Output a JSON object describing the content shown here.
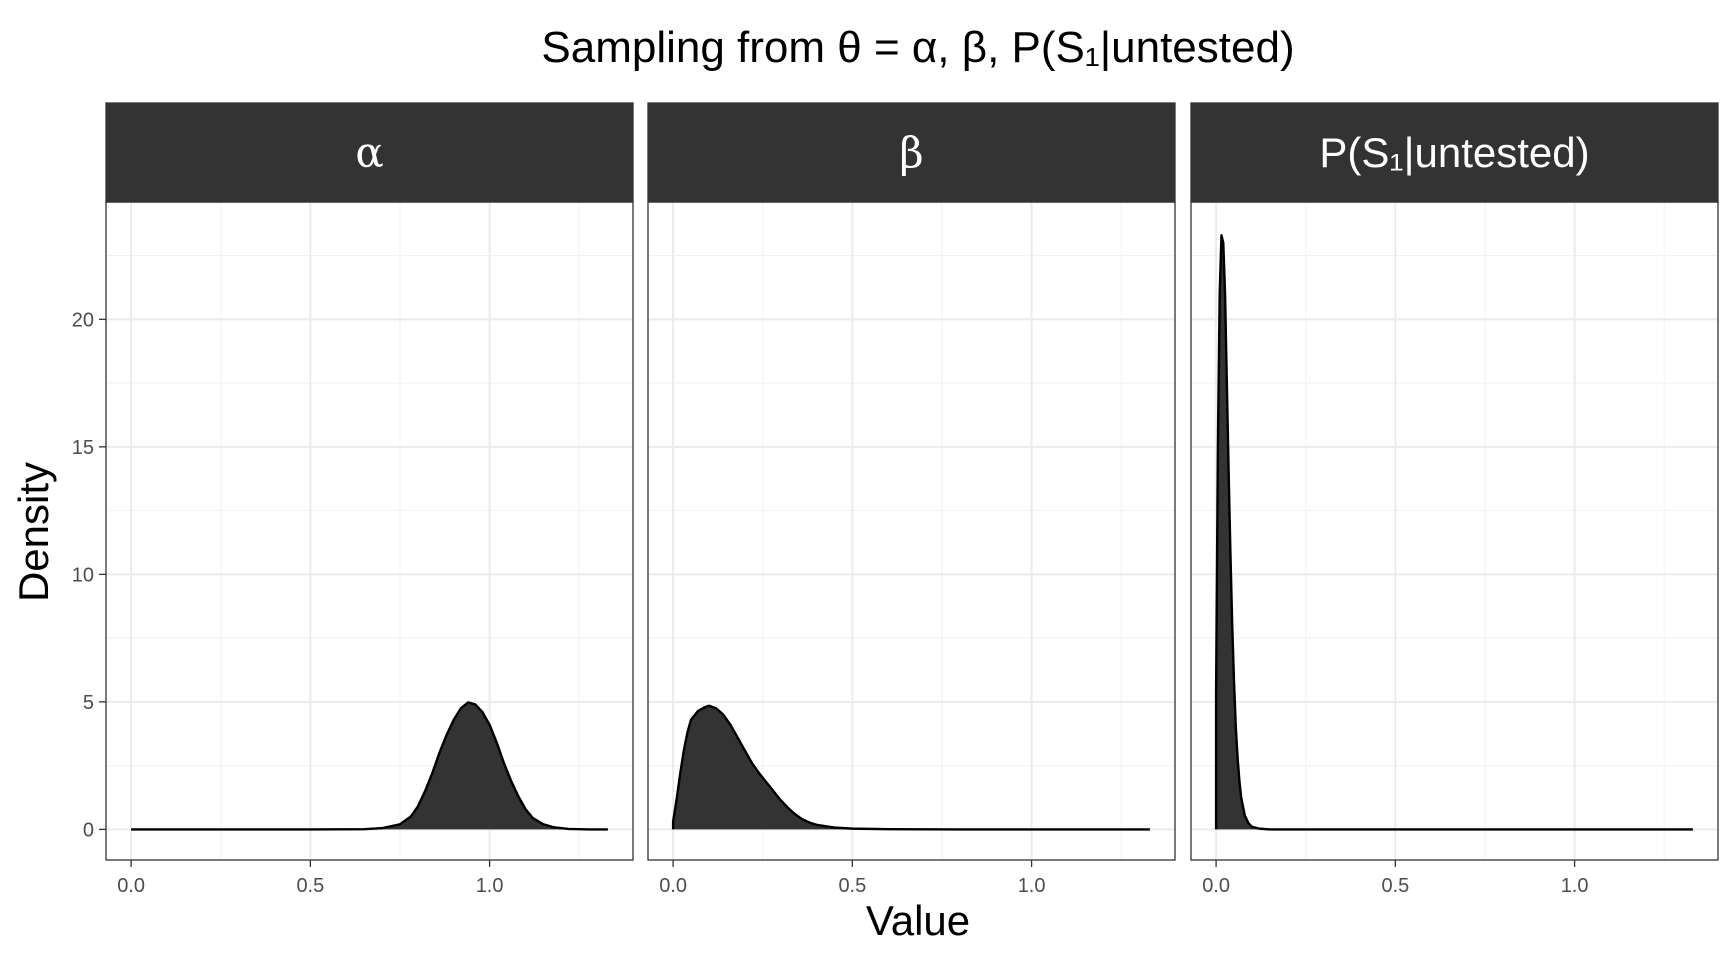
{
  "chart_data": {
    "type": "area",
    "title": "Sampling from θ = α, β, P(S₁|untested)",
    "xlabel": "Value",
    "ylabel": "Density",
    "xlim": [
      -0.07,
      1.4
    ],
    "ylim": [
      -1.2,
      24.6
    ],
    "x_ticks": [
      0.0,
      0.5,
      1.0
    ],
    "x_tick_labels": [
      "0.0",
      "0.5",
      "1.0"
    ],
    "y_ticks": [
      0,
      5,
      10,
      15,
      20
    ],
    "y_tick_labels": [
      "0",
      "5",
      "10",
      "15",
      "20"
    ],
    "grid": true,
    "legend": "none",
    "panels": [
      {
        "strip_label": "α",
        "points": [
          [
            0.0,
            0
          ],
          [
            0.5,
            0
          ],
          [
            0.65,
            0.01
          ],
          [
            0.7,
            0.05
          ],
          [
            0.75,
            0.2
          ],
          [
            0.78,
            0.5
          ],
          [
            0.8,
            0.9
          ],
          [
            0.82,
            1.5
          ],
          [
            0.84,
            2.2
          ],
          [
            0.86,
            3.0
          ],
          [
            0.88,
            3.7
          ],
          [
            0.9,
            4.3
          ],
          [
            0.92,
            4.75
          ],
          [
            0.94,
            4.98
          ],
          [
            0.96,
            4.9
          ],
          [
            0.98,
            4.6
          ],
          [
            1.0,
            4.1
          ],
          [
            1.02,
            3.4
          ],
          [
            1.04,
            2.6
          ],
          [
            1.06,
            1.9
          ],
          [
            1.08,
            1.3
          ],
          [
            1.1,
            0.8
          ],
          [
            1.12,
            0.45
          ],
          [
            1.15,
            0.2
          ],
          [
            1.18,
            0.08
          ],
          [
            1.22,
            0.02
          ],
          [
            1.28,
            0.0
          ],
          [
            1.33,
            0.0
          ]
        ]
      },
      {
        "strip_label": "β",
        "points": [
          [
            0.0,
            0.3
          ],
          [
            0.01,
            1.2
          ],
          [
            0.02,
            2.2
          ],
          [
            0.03,
            3.1
          ],
          [
            0.04,
            3.8
          ],
          [
            0.05,
            4.3
          ],
          [
            0.07,
            4.65
          ],
          [
            0.09,
            4.8
          ],
          [
            0.1,
            4.85
          ],
          [
            0.12,
            4.75
          ],
          [
            0.14,
            4.5
          ],
          [
            0.16,
            4.1
          ],
          [
            0.18,
            3.6
          ],
          [
            0.2,
            3.1
          ],
          [
            0.22,
            2.6
          ],
          [
            0.24,
            2.2
          ],
          [
            0.26,
            1.85
          ],
          [
            0.28,
            1.5
          ],
          [
            0.3,
            1.15
          ],
          [
            0.32,
            0.85
          ],
          [
            0.34,
            0.6
          ],
          [
            0.36,
            0.4
          ],
          [
            0.38,
            0.27
          ],
          [
            0.4,
            0.18
          ],
          [
            0.45,
            0.07
          ],
          [
            0.5,
            0.03
          ],
          [
            0.6,
            0.01
          ],
          [
            0.8,
            0.0
          ],
          [
            1.0,
            0.0
          ],
          [
            1.33,
            0.0
          ]
        ]
      },
      {
        "strip_label": "P(S₁|untested)",
        "points": [
          [
            0.0,
            5.4
          ],
          [
            0.005,
            15.0
          ],
          [
            0.01,
            21.0
          ],
          [
            0.015,
            23.3
          ],
          [
            0.02,
            23.0
          ],
          [
            0.025,
            21.0
          ],
          [
            0.03,
            17.5
          ],
          [
            0.035,
            14.0
          ],
          [
            0.04,
            10.8
          ],
          [
            0.045,
            8.0
          ],
          [
            0.05,
            5.8
          ],
          [
            0.055,
            4.0
          ],
          [
            0.06,
            2.8
          ],
          [
            0.065,
            1.9
          ],
          [
            0.07,
            1.25
          ],
          [
            0.08,
            0.55
          ],
          [
            0.09,
            0.25
          ],
          [
            0.1,
            0.1
          ],
          [
            0.12,
            0.03
          ],
          [
            0.15,
            0.0
          ],
          [
            0.5,
            0.0
          ],
          [
            1.0,
            0.0
          ],
          [
            1.33,
            0.0
          ]
        ]
      }
    ]
  }
}
